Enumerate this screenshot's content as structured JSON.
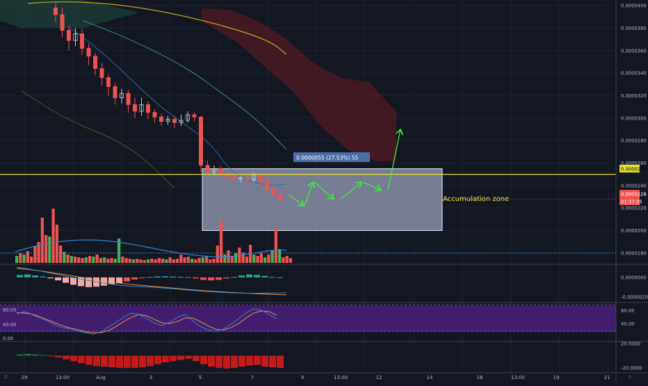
{
  "chart_data": {
    "type": "candlestick",
    "title": "",
    "main_pane": {
      "price_axis_ticks": [
        "0.0000400",
        "0.0000380",
        "0.0000360",
        "0.0000340",
        "0.0000320",
        "0.0000300",
        "0.0000280",
        "0.0000260",
        "0.0000240",
        "0.0000220",
        "0.0000200",
        "0.0000180"
      ],
      "ylim": [
        1.7e-05,
        4.05e-05
      ],
      "current_price": "0.0000228",
      "countdown": "01:37:35",
      "resistance_level": "0.0000250",
      "resistance_value": 2.5e-05,
      "measure_label": "0.0000055 (27.53%) 55",
      "annotation": "Accumulation zone",
      "zone": {
        "top": 2.55e-05,
        "bottom": 2e-05
      },
      "volume_avg_line_value": 1.8e-05,
      "candles": [
        [
          3.98e-05,
          3.92e-05,
          4.03e-05,
          3.85e-05
        ],
        [
          3.92e-05,
          3.78e-05,
          3.98e-05,
          3.72e-05
        ],
        [
          3.78e-05,
          3.69e-05,
          3.82e-05,
          3.6e-05
        ],
        [
          3.69e-05,
          3.75e-05,
          3.8e-05,
          3.64e-05
        ],
        [
          3.75e-05,
          3.62e-05,
          3.79e-05,
          3.56e-05
        ],
        [
          3.62e-05,
          3.55e-05,
          3.66e-05,
          3.47e-05
        ],
        [
          3.55e-05,
          3.44e-05,
          3.58e-05,
          3.38e-05
        ],
        [
          3.44e-05,
          3.36e-05,
          3.49e-05,
          3.29e-05
        ],
        [
          3.36e-05,
          3.28e-05,
          3.39e-05,
          3.2e-05
        ],
        [
          3.28e-05,
          3.18e-05,
          3.31e-05,
          3.12e-05
        ],
        [
          3.18e-05,
          3.22e-05,
          3.26e-05,
          3.13e-05
        ],
        [
          3.22e-05,
          3.12e-05,
          3.25e-05,
          3.05e-05
        ],
        [
          3.12e-05,
          3.06e-05,
          3.18e-05,
          3e-05
        ],
        [
          3.06e-05,
          3.12e-05,
          3.18e-05,
          3.02e-05
        ],
        [
          3.12e-05,
          3.05e-05,
          3.15e-05,
          2.99e-05
        ],
        [
          3.05e-05,
          3.01e-05,
          3.08e-05,
          2.96e-05
        ],
        [
          3.01e-05,
          2.97e-05,
          3.04e-05,
          2.93e-05
        ],
        [
          2.97e-05,
          2.99e-05,
          3.02e-05,
          2.94e-05
        ],
        [
          2.99e-05,
          2.96e-05,
          3.02e-05,
          2.91e-05
        ],
        [
          2.96e-05,
          2.98e-05,
          3.03e-05,
          2.93e-05
        ],
        [
          2.98e-05,
          3.03e-05,
          3.06e-05,
          2.96e-05
        ],
        [
          3.03e-05,
          3.01e-05,
          3.05e-05,
          2.97e-05
        ],
        [
          3.01e-05,
          2.58e-05,
          3.02e-05,
          2.52e-05
        ],
        [
          2.58e-05,
          2.52e-05,
          2.62e-05,
          2.48e-05
        ],
        [
          2.52e-05,
          2.55e-05,
          2.58e-05,
          2.49e-05
        ],
        [
          2.55e-05,
          2.51e-05,
          2.57e-05,
          2.47e-05
        ],
        [
          2.51e-05,
          2.48e-05,
          2.53e-05,
          2.44e-05
        ],
        [
          2.48e-05,
          2.46e-05,
          2.5e-05,
          2.42e-05
        ],
        [
          2.46e-05,
          2.47e-05,
          2.49e-05,
          2.43e-05
        ],
        [
          2.47e-05,
          2.45e-05,
          2.49e-05,
          2.42e-05
        ],
        [
          2.45e-05,
          2.5e-05,
          2.52e-05,
          2.43e-05
        ],
        [
          2.5e-05,
          2.44e-05,
          2.51e-05,
          2.4e-05
        ],
        [
          2.44e-05,
          2.37e-05,
          2.46e-05,
          2.33e-05
        ],
        [
          2.37e-05,
          2.32e-05,
          2.39e-05,
          2.29e-05
        ],
        [
          2.32e-05,
          2.28e-05,
          2.34e-05,
          2.26e-05
        ]
      ],
      "projection_arrows": [
        [
          2.32e-05,
          2.22e-05
        ],
        [
          2.22e-05,
          2.43e-05
        ],
        [
          2.43e-05,
          2.28e-05
        ],
        [
          2.28e-05,
          2.43e-05
        ],
        [
          2.43e-05,
          2.36e-05
        ],
        [
          2.36e-05,
          2.9e-05
        ]
      ]
    },
    "volume_bars": [
      [
        10,
        "g"
      ],
      [
        14,
        "r"
      ],
      [
        12,
        "g"
      ],
      [
        17,
        "r"
      ],
      [
        9,
        "r"
      ],
      [
        24,
        "r"
      ],
      [
        30,
        "r"
      ],
      [
        65,
        "r"
      ],
      [
        40,
        "r"
      ],
      [
        38,
        "g"
      ],
      [
        78,
        "r"
      ],
      [
        55,
        "r"
      ],
      [
        25,
        "r"
      ],
      [
        16,
        "g"
      ],
      [
        12,
        "r"
      ],
      [
        10,
        "g"
      ],
      [
        9,
        "r"
      ],
      [
        8,
        "r"
      ],
      [
        7,
        "r"
      ],
      [
        8,
        "g"
      ],
      [
        10,
        "r"
      ],
      [
        9,
        "g"
      ],
      [
        12,
        "r"
      ],
      [
        7,
        "r"
      ],
      [
        8,
        "g"
      ],
      [
        6,
        "r"
      ],
      [
        7,
        "r"
      ],
      [
        6,
        "g"
      ],
      [
        35,
        "g"
      ],
      [
        9,
        "r"
      ],
      [
        7,
        "r"
      ],
      [
        6,
        "r"
      ],
      [
        5,
        "g"
      ],
      [
        6,
        "r"
      ],
      [
        5,
        "r"
      ],
      [
        4,
        "r"
      ],
      [
        5,
        "g"
      ],
      [
        6,
        "r"
      ],
      [
        5,
        "r"
      ],
      [
        7,
        "r"
      ],
      [
        6,
        "r"
      ],
      [
        5,
        "g"
      ],
      [
        8,
        "r"
      ],
      [
        5,
        "r"
      ],
      [
        6,
        "r"
      ],
      [
        12,
        "r"
      ],
      [
        8,
        "r"
      ],
      [
        9,
        "r"
      ],
      [
        6,
        "g"
      ],
      [
        5,
        "r"
      ],
      [
        7,
        "r"
      ],
      [
        8,
        "g"
      ],
      [
        10,
        "r"
      ],
      [
        5,
        "r"
      ],
      [
        6,
        "r"
      ],
      [
        25,
        "r"
      ],
      [
        60,
        "r"
      ],
      [
        12,
        "g"
      ],
      [
        18,
        "r"
      ],
      [
        10,
        "r"
      ],
      [
        14,
        "g"
      ],
      [
        22,
        "r"
      ],
      [
        15,
        "r"
      ],
      [
        9,
        "r"
      ],
      [
        26,
        "r"
      ],
      [
        12,
        "g"
      ],
      [
        10,
        "r"
      ],
      [
        14,
        "r"
      ],
      [
        8,
        "g"
      ],
      [
        12,
        "r"
      ],
      [
        18,
        "g"
      ],
      [
        50,
        "r"
      ],
      [
        20,
        "g"
      ],
      [
        8,
        "r"
      ],
      [
        10,
        "r"
      ],
      [
        7,
        "r"
      ]
    ],
    "macd_pane": {
      "ticks": [
        "0.0000000",
        "-0.0000020"
      ],
      "ylim": [
        -2.5e-06,
        1.2e-06
      ],
      "histogram": [
        2.5e-07,
        3e-07,
        2e-07,
        1e-07,
        -1e-07,
        -3e-07,
        -5.5e-07,
        -7.5e-07,
        -9e-07,
        -1e-06,
        -9.5e-07,
        -8.5e-07,
        -7e-07,
        -6e-07,
        -4e-07,
        -2e-07,
        -5e-08,
        5e-08,
        1e-07,
        1.2e-07,
        8e-08,
        5e-08,
        3e-08,
        -1e-07,
        -2.5e-07,
        -3e-07,
        -2.5e-07,
        -1e-07,
        5e-08,
        2e-07,
        3e-07,
        2.5e-07,
        1.5e-07,
        5e-08,
        0.0
      ]
    },
    "stoch_pane": {
      "ticks": [
        "80.00",
        "60.00",
        "40.00",
        "20.00",
        "0.00"
      ],
      "ylim": [
        -5,
        100
      ],
      "band": [
        20,
        80
      ],
      "k": [
        72,
        78,
        70,
        60,
        52,
        40,
        32,
        30,
        22,
        18,
        14,
        20,
        34,
        48,
        62,
        74,
        70,
        58,
        46,
        38,
        48,
        62,
        70,
        52,
        36,
        26,
        22,
        28,
        42,
        58,
        75,
        86,
        82,
        70,
        58
      ],
      "d": [
        75,
        74,
        71,
        64,
        55,
        46,
        38,
        31,
        27,
        21,
        18,
        18,
        24,
        36,
        50,
        62,
        70,
        66,
        56,
        46,
        44,
        50,
        60,
        60,
        50,
        38,
        28,
        26,
        32,
        44,
        60,
        74,
        80,
        78,
        68
      ]
    },
    "osc_pane": {
      "ticks": [
        "20.0000",
        "-20.0000"
      ],
      "ylim": [
        -28,
        22
      ],
      "values": [
        2,
        3,
        2,
        1,
        -1,
        -3,
        -6,
        -9,
        -12,
        -15,
        -17,
        -18,
        -19,
        -20,
        -20,
        -20,
        -19,
        -17,
        -14,
        -11,
        -9,
        -7,
        -5,
        -9,
        -14,
        -18,
        -20,
        -21,
        -20,
        -18,
        -16,
        -15,
        -18,
        -19,
        -20
      ]
    },
    "time_axis": [
      "29",
      "13:00",
      "Aug",
      "3",
      "5",
      "7",
      "9",
      "13:00",
      "12",
      "14",
      "16",
      "13:00",
      "19",
      "21"
    ],
    "corner_marks": [
      "Z",
      "A"
    ],
    "colors": {
      "background": "#131722",
      "up": "#26a69a",
      "down": "#ef5350",
      "resistance": "#e8e22a",
      "zone": "#c8d2f0",
      "arrows": "#3cf03c",
      "annotation": "#f0e63c",
      "cloud": "#6a1b22",
      "ma": "#c9a227",
      "stoch_band": "#4a1f7a"
    }
  }
}
